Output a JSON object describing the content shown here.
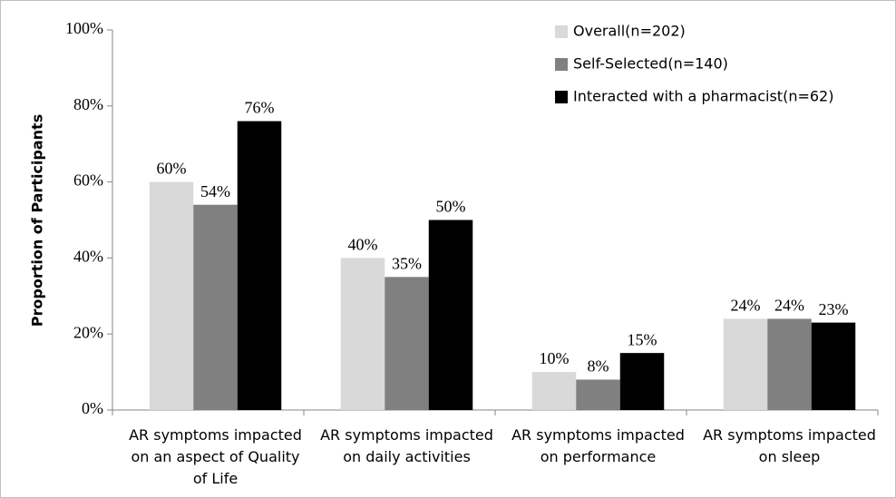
{
  "chart_data": {
    "type": "bar",
    "y_label": "Proportion of Participants",
    "categories": [
      "AR symptoms impacted on an aspect of Quality of Life",
      "AR symptoms impacted on daily activities",
      "AR symptoms impacted on performance",
      "AR symptoms impacted on sleep"
    ],
    "series": [
      {
        "name": "Overall(n=202)",
        "color": "#d9d9d9",
        "values": [
          60,
          40,
          10,
          24
        ],
        "value_labels": [
          "60%",
          "40%",
          "10%",
          "24%"
        ]
      },
      {
        "name": "Self-Selected(n=140)",
        "color": "#808080",
        "values": [
          54,
          35,
          8,
          24
        ],
        "value_labels": [
          "54%",
          "35%",
          "8%",
          "24%"
        ]
      },
      {
        "name": "Interacted with a pharmacist(n=62)",
        "color": "#000000",
        "values": [
          76,
          50,
          15,
          23
        ],
        "value_labels": [
          "76%",
          "50%",
          "15%",
          "23%"
        ]
      }
    ],
    "ylim": [
      0,
      100
    ],
    "yticks": [
      {
        "value": 0,
        "label": "0%"
      },
      {
        "value": 20,
        "label": "20%"
      },
      {
        "value": 40,
        "label": "40%"
      },
      {
        "value": 60,
        "label": "60%"
      },
      {
        "value": 80,
        "label": "80%"
      },
      {
        "value": 100,
        "label": "100%"
      }
    ],
    "legend": "top-right"
  }
}
